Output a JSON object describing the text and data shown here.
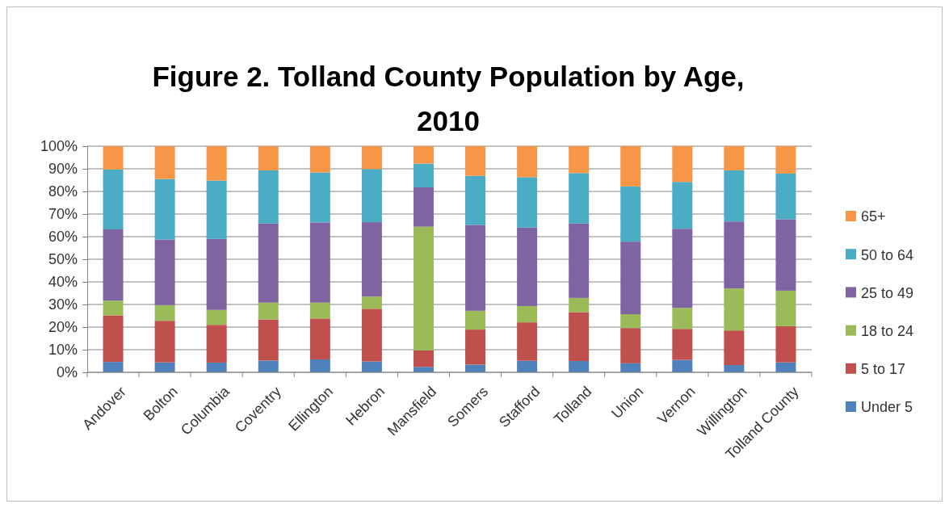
{
  "chart_data": {
    "type": "bar",
    "title": "Figure 2. Tolland County Population by Age, 2010",
    "stacked": true,
    "categories": [
      "Andover",
      "Bolton",
      "Columbia",
      "Coventry",
      "Ellington",
      "Hebron",
      "Mansfield",
      "Somers",
      "Stafford",
      "Tolland",
      "Union",
      "Vernon",
      "Willington",
      "Tolland County"
    ],
    "series": [
      {
        "name": "Under 5",
        "color": "#4f81bd",
        "values": [
          4.6,
          4.4,
          4.3,
          5.2,
          5.7,
          4.8,
          2.4,
          3.4,
          5.1,
          5.0,
          4.0,
          5.5,
          3.2,
          4.4
        ]
      },
      {
        "name": "5 to 17",
        "color": "#c0504d",
        "values": [
          20.6,
          18.4,
          16.7,
          18.2,
          18.1,
          23.3,
          7.3,
          15.5,
          17.0,
          21.6,
          15.6,
          13.7,
          15.3,
          16.0
        ]
      },
      {
        "name": "18 to 24",
        "color": "#9bbb59",
        "values": [
          6.5,
          6.9,
          6.6,
          7.4,
          7.0,
          5.4,
          54.7,
          8.3,
          7.2,
          6.3,
          6.1,
          9.3,
          18.6,
          15.7
        ]
      },
      {
        "name": "25 to 49",
        "color": "#8064a2",
        "values": [
          31.5,
          29.0,
          31.4,
          35.0,
          35.5,
          32.9,
          17.4,
          38.0,
          34.7,
          32.9,
          32.1,
          35.0,
          29.6,
          31.6
        ]
      },
      {
        "name": "50 to 64",
        "color": "#4bacc6",
        "values": [
          26.5,
          26.8,
          25.8,
          23.5,
          22.1,
          23.5,
          10.5,
          21.7,
          22.3,
          22.3,
          24.4,
          20.7,
          22.6,
          20.2
        ]
      },
      {
        "name": "65+",
        "color": "#f79646",
        "values": [
          10.3,
          14.5,
          15.2,
          10.7,
          11.6,
          10.1,
          7.7,
          13.1,
          13.7,
          11.9,
          17.8,
          15.8,
          10.7,
          12.1
        ]
      }
    ],
    "ylim": [
      0,
      100
    ],
    "yticks": [
      {
        "value": 0,
        "label": "0%"
      },
      {
        "value": 10,
        "label": "10%"
      },
      {
        "value": 20,
        "label": "20%"
      },
      {
        "value": 30,
        "label": "30%"
      },
      {
        "value": 40,
        "label": "40%"
      },
      {
        "value": 50,
        "label": "50%"
      },
      {
        "value": 60,
        "label": "60%"
      },
      {
        "value": 70,
        "label": "70%"
      },
      {
        "value": 80,
        "label": "80%"
      },
      {
        "value": 90,
        "label": "90%"
      },
      {
        "value": 100,
        "label": "100%"
      }
    ],
    "grid": "y",
    "legend": "right"
  }
}
